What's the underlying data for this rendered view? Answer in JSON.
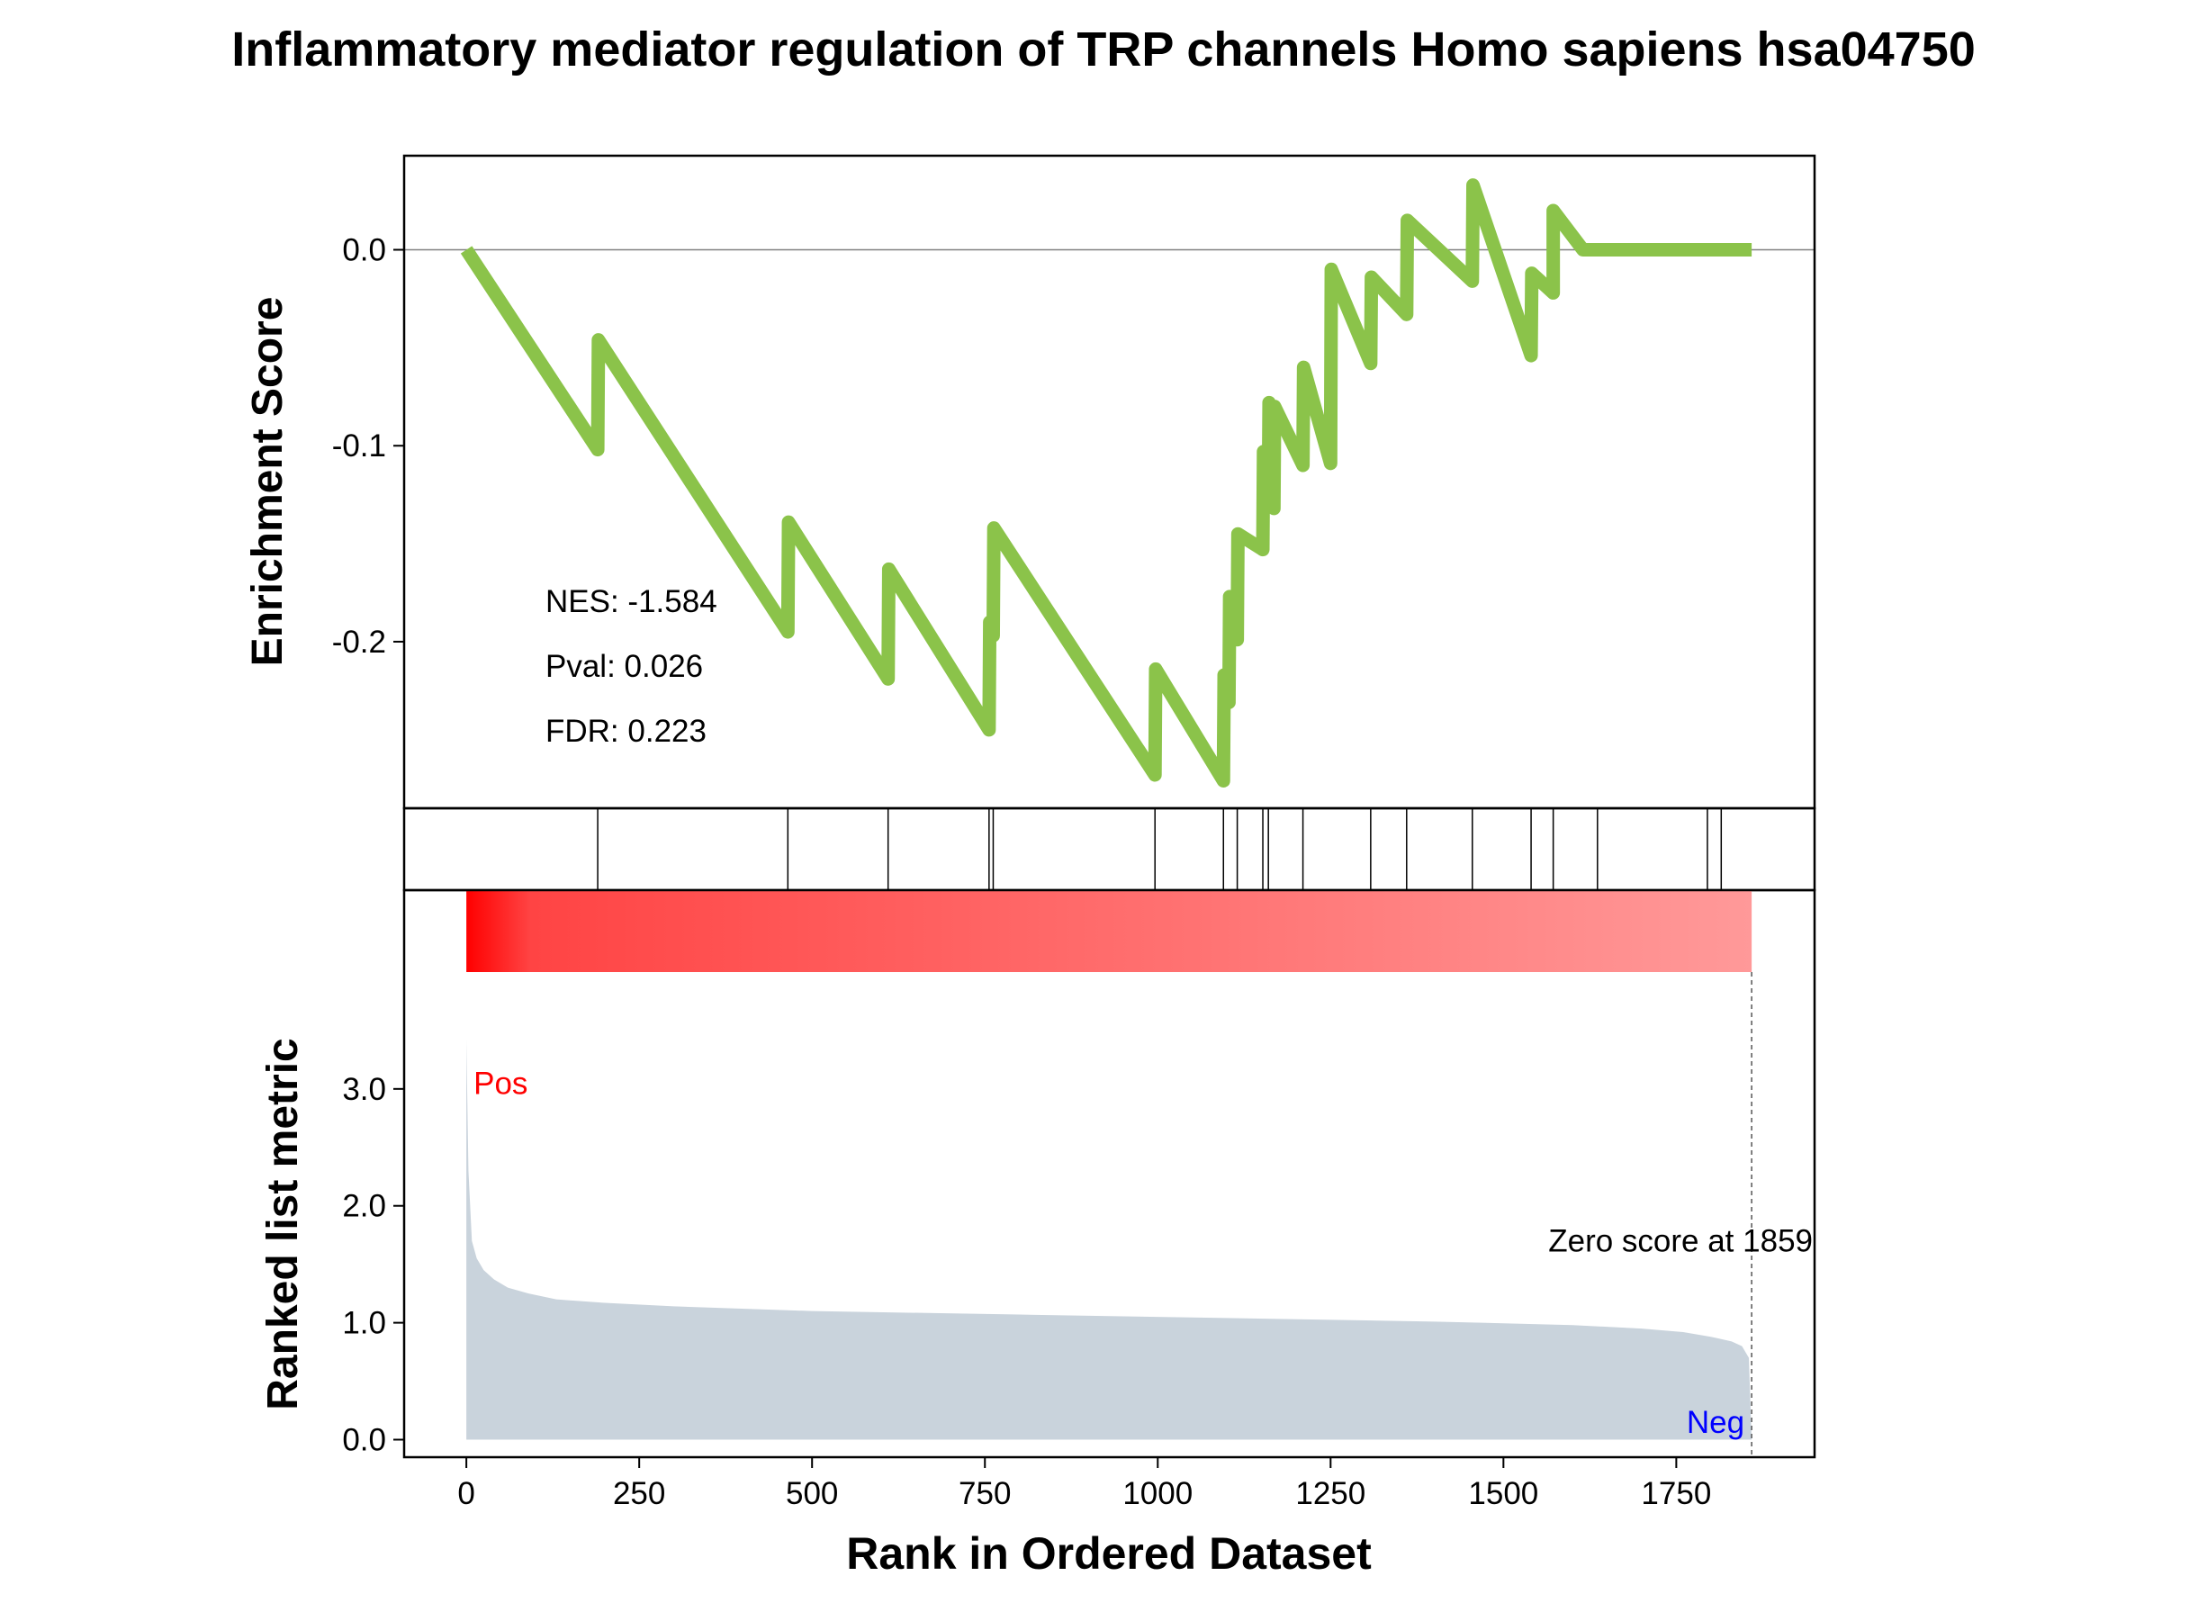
{
  "chart_data": {
    "type": "line",
    "title": "Inflammatory mediator regulation of TRP channels Homo sapiens hsa04750",
    "xlabel": "Rank in Ordered Dataset",
    "xlim": [
      -90,
      1950
    ],
    "xticks": [
      0,
      250,
      500,
      750,
      1000,
      1250,
      1500,
      1750
    ],
    "grid": false,
    "colors": {
      "es_line": "#8bc34a",
      "metric_fill": "#c9d3dc",
      "pos_label": "#ff0000",
      "neg_label": "#0000ff",
      "heatmap_start": "#ff0000",
      "heatmap_end": "#ff9999"
    },
    "enrichment": {
      "ylabel": "Enrichment Score",
      "ylim": [
        -0.285,
        0.048
      ],
      "yticks": [
        0.0,
        -0.1,
        -0.2
      ],
      "ytick_labels": [
        "0.0",
        "-0.1",
        "-0.2"
      ],
      "x": [
        0,
        190,
        191,
        465,
        466,
        610,
        611,
        756,
        757,
        762,
        763,
        996,
        997,
        1095,
        1096,
        1103,
        1104,
        1115,
        1116,
        1152,
        1153,
        1160,
        1161,
        1168,
        1169,
        1210,
        1211,
        1250,
        1251,
        1308,
        1309,
        1360,
        1361,
        1455,
        1456,
        1540,
        1541,
        1572,
        1572,
        1615,
        1616,
        1636,
        1637,
        1795,
        1796,
        1800,
        1801,
        1815,
        1816,
        1859
      ],
      "y": [
        0.0,
        -0.102,
        -0.046,
        -0.195,
        -0.139,
        -0.219,
        -0.163,
        -0.245,
        -0.19,
        -0.197,
        -0.142,
        -0.268,
        -0.214,
        -0.271,
        -0.217,
        -0.231,
        -0.177,
        -0.199,
        -0.145,
        -0.153,
        -0.103,
        -0.128,
        -0.078,
        -0.132,
        -0.08,
        -0.11,
        -0.06,
        -0.109,
        -0.01,
        -0.058,
        -0.014,
        -0.033,
        0.015,
        -0.016,
        0.033,
        -0.054,
        -0.012,
        -0.022,
        0.02,
        0.0,
        0.0,
        0.0,
        0.0,
        0.0,
        0.0,
        0.0,
        0.0,
        0.0,
        0.0,
        0.0
      ],
      "stats": {
        "nes": "NES: -1.584",
        "pval": "Pval: 0.026",
        "fdr": "FDR: 0.223"
      }
    },
    "hits": [
      190,
      465,
      610,
      756,
      762,
      996,
      1095,
      1115,
      1152,
      1160,
      1210,
      1308,
      1360,
      1455,
      1540,
      1572,
      1636,
      1795,
      1815
    ],
    "heatmap": {
      "x_range": [
        0,
        1859
      ]
    },
    "ranked_metric": {
      "ylabel": "Ranked list metric",
      "ylim": [
        -0.15,
        4.7
      ],
      "yticks": [
        0.0,
        1.0,
        2.0,
        3.0
      ],
      "ytick_labels": [
        "0.0",
        "1.0",
        "2.0",
        "3.0"
      ],
      "x": [
        0,
        3,
        8,
        15,
        25,
        40,
        60,
        90,
        130,
        200,
        300,
        500,
        800,
        1100,
        1400,
        1600,
        1700,
        1760,
        1800,
        1830,
        1845,
        1855,
        1859
      ],
      "y": [
        3.42,
        2.3,
        1.7,
        1.55,
        1.45,
        1.37,
        1.3,
        1.25,
        1.2,
        1.17,
        1.14,
        1.1,
        1.07,
        1.04,
        1.01,
        0.98,
        0.95,
        0.92,
        0.88,
        0.84,
        0.8,
        0.7,
        0.0
      ],
      "pos_label": "Pos",
      "neg_label": "Neg",
      "zero_score_label": "Zero score at 1859",
      "zero_score_x": 1859
    }
  }
}
